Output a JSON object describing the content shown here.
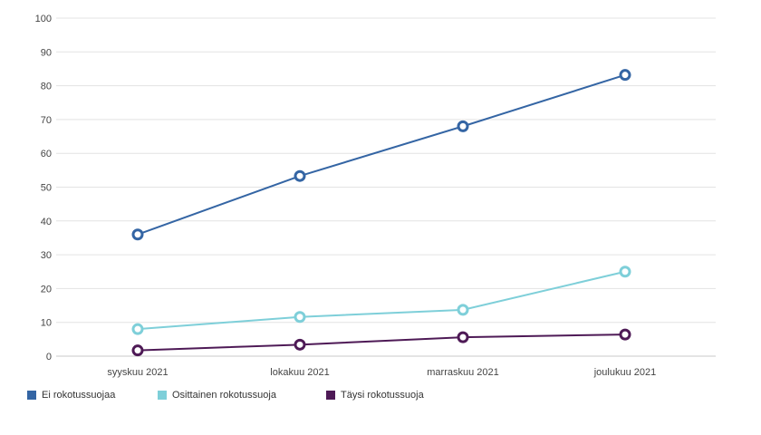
{
  "chart_data": {
    "type": "line",
    "title": "",
    "xlabel": "",
    "ylabel": "",
    "categories": [
      "syyskuu 2021",
      "lokakuu 2021",
      "marraskuu 2021",
      "joulukuu 2021"
    ],
    "ylim": [
      0,
      100
    ],
    "yticks": [
      0,
      10,
      20,
      30,
      40,
      50,
      60,
      70,
      80,
      90,
      100
    ],
    "grid": true,
    "legend_position": "bottom-left",
    "series": [
      {
        "name": "Ei rokotussuojaa",
        "color": "#3465a4",
        "values": [
          36,
          53.3,
          68,
          83.2
        ]
      },
      {
        "name": "Osittainen rokotussuoja",
        "color": "#7ecfd9",
        "values": [
          8,
          11.6,
          13.7,
          25
        ]
      },
      {
        "name": "Täysi rokotussuoja",
        "color": "#4e1a56",
        "values": [
          1.7,
          3.4,
          5.6,
          6.4
        ]
      }
    ]
  }
}
